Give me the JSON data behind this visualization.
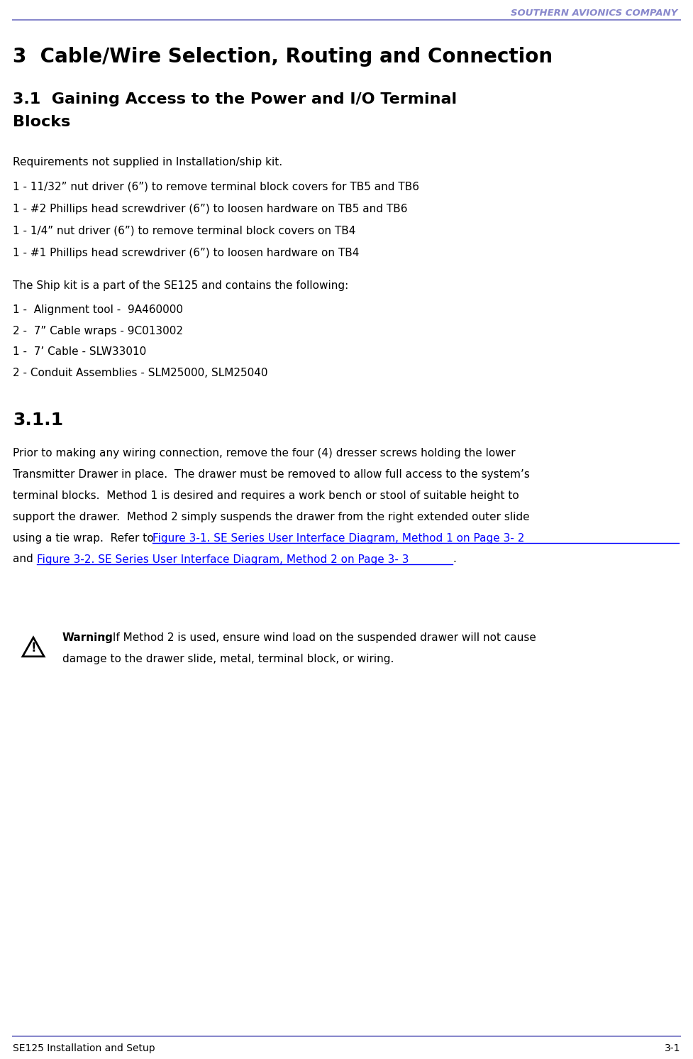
{
  "header_company": "SOUTHERN AVIONICS COMPANY",
  "header_color": "#8888cc",
  "header_line_color": "#8888cc",
  "footer_left": "SE125 Installation and Setup",
  "footer_right": "3-1",
  "footer_line_color": "#8888cc",
  "title1": "3  Cable/Wire Selection, Routing and Connection",
  "title2_line1": "3.1  Gaining Access to the Power and I/O Terminal",
  "title2_line2": "Blocks",
  "section_311": "3.1.1",
  "body_color": "#000000",
  "link_color": "#0000ff",
  "bg_color": "#ffffff",
  "requirements_intro": "Requirements not supplied in Installation/ship kit.",
  "req_items": [
    "1 - 11/32” nut driver (6”) to remove terminal block covers for TB5 and TB6",
    "1 - #2 Phillips head screwdriver (6”) to loosen hardware on TB5 and TB6",
    "1 - 1/4” nut driver (6”) to remove terminal block covers on TB4",
    "1 - #1 Phillips head screwdriver (6”) to loosen hardware on TB4"
  ],
  "ship_kit_intro": "The Ship kit is a part of the SE125 and contains the following:",
  "ship_kit_items": [
    "1 -  Alignment tool -  9A460000",
    "2 -  7” Cable wraps - 9C013002",
    "1 -  7’ Cable - SLW33010",
    "2 - Conduit Assemblies - SLM25000, SLM25040"
  ],
  "link1": "Figure 3-1. SE Series User Interface Diagram, Method 1 on Page 3- 2",
  "link2": "Figure 3-2. SE Series User Interface Diagram, Method 2 on Page 3- 3",
  "warning_bold": "Warning",
  "warning_rest": ":  If Method 2 is used, ensure wind load on the suspended drawer will not cause",
  "warning_line2": "damage to the drawer slide, metal, terminal block, or wiring.",
  "para_lines": [
    "Prior to making any wiring connection, remove the four (4) dresser screws holding the lower",
    "Transmitter Drawer in place.  The drawer must be removed to allow full access to the system’s",
    "terminal blocks.  Method 1 is desired and requires a work bench or stool of suitable height to",
    "support the drawer.  Method 2 simply suspends the drawer from the right extended outer slide",
    "using a tie wrap.  Refer to "
  ]
}
